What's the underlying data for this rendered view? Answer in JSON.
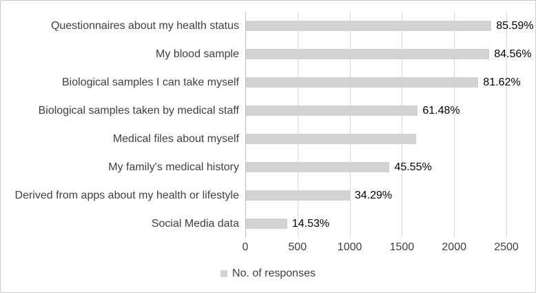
{
  "chart_data": {
    "type": "bar",
    "orientation": "horizontal",
    "title": "",
    "categories": [
      "Questionnaires about my health status",
      "My blood sample",
      "Biological samples I can take myself",
      "Biological samples taken by medical staff",
      "Medical files about myself",
      "My family's medical history",
      "Derived from apps about my health or lifestyle",
      "Social Media data"
    ],
    "values": [
      2350,
      2330,
      2225,
      1645,
      1630,
      1375,
      995,
      395
    ],
    "data_labels": [
      "85.59%",
      "84.56%",
      "81.62%",
      "61.48%",
      "",
      "45.55%",
      "34.29%",
      "14.53%"
    ],
    "x_ticks": [
      0,
      500,
      1000,
      1500,
      2000,
      2500
    ],
    "xlim": [
      0,
      2500
    ],
    "xlabel": "",
    "ylabel": "",
    "grid": "vertical",
    "legend": {
      "label": "No. of responses",
      "position": "bottom-center"
    }
  },
  "colors": {
    "bar": "#d2d2d2",
    "gridline": "#d9d9d9",
    "axis_line": "#bfbfbf",
    "category_text": "#404040",
    "tick_text": "#404040",
    "data_label_text": "#000000",
    "legend_text": "#404040",
    "border": "#c9c9c9",
    "background": "#ffffff"
  }
}
